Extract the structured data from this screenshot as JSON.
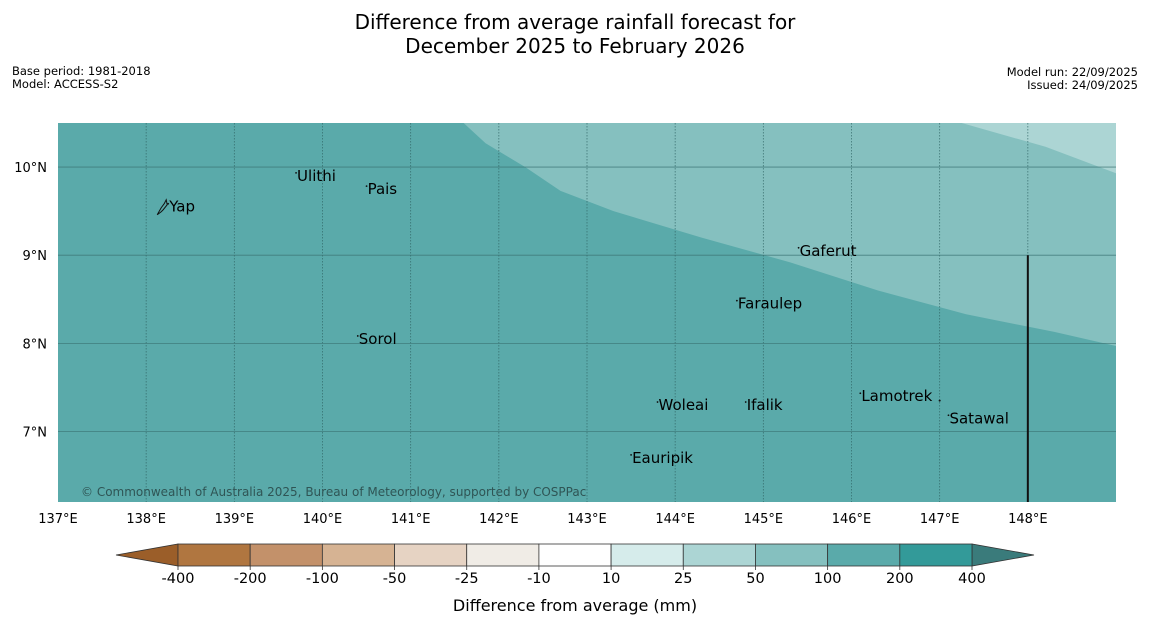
{
  "title": {
    "line1": "Difference from average rainfall forecast for",
    "line2": "December 2025 to February 2026"
  },
  "meta": {
    "base_period": "Base period: 1981-2018",
    "model": "Model: ACCESS-S2",
    "model_run": "Model run: 22/09/2025",
    "issued": "Issued: 24/09/2025"
  },
  "map": {
    "lon_range": [
      137,
      149
    ],
    "lat_range": [
      6.2,
      10.5
    ],
    "lon_ticks": [
      137,
      138,
      139,
      140,
      141,
      142,
      143,
      144,
      145,
      146,
      147,
      148
    ],
    "lon_tick_labels": [
      "137°E",
      "138°E",
      "139°E",
      "140°E",
      "141°E",
      "142°E",
      "143°E",
      "144°E",
      "145°E",
      "146°E",
      "147°E",
      "148°E"
    ],
    "lat_ticks": [
      7,
      8,
      9,
      10
    ],
    "lat_tick_labels": [
      "7°N",
      "8°N",
      "9°N",
      "10°N"
    ],
    "boundary_line": {
      "lon": 148,
      "lat_from": 6.2,
      "lat_to": 9.0
    },
    "region_colors": {
      "band_200": "#5aaaaa",
      "band_100": "#85c0bf",
      "band_50": "#acd5d4"
    },
    "region_100_edge": [
      [
        141.6,
        10.5
      ],
      [
        141.85,
        10.27
      ],
      [
        142.3,
        10.0
      ],
      [
        142.7,
        9.73
      ],
      [
        143.3,
        9.5
      ],
      [
        144.3,
        9.2
      ],
      [
        145.3,
        8.92
      ],
      [
        146.3,
        8.6
      ],
      [
        147.3,
        8.33
      ],
      [
        148.3,
        8.13
      ],
      [
        149,
        7.97
      ],
      [
        149,
        10.5
      ]
    ],
    "region_50_edge": [
      [
        147.25,
        10.5
      ],
      [
        148.2,
        10.23
      ],
      [
        149,
        9.93
      ],
      [
        149,
        10.5
      ]
    ],
    "places": [
      {
        "name": "Ulithi",
        "lon": 139.7,
        "lat": 9.9
      },
      {
        "name": "Pais",
        "lon": 140.5,
        "lat": 9.75
      },
      {
        "name": "Yap",
        "lon": 138.25,
        "lat": 9.55
      },
      {
        "name": "Gaferut",
        "lon": 145.4,
        "lat": 9.05
      },
      {
        "name": "Faraulep",
        "lon": 144.7,
        "lat": 8.45
      },
      {
        "name": "Sorol",
        "lon": 140.4,
        "lat": 8.05
      },
      {
        "name": "Lamotrek",
        "lon": 146.1,
        "lat": 7.4
      },
      {
        "name": "Woleai",
        "lon": 143.8,
        "lat": 7.3
      },
      {
        "name": "Ifalik",
        "lon": 144.8,
        "lat": 7.3
      },
      {
        "name": "Satawal",
        "lon": 147.1,
        "lat": 7.15
      },
      {
        "name": "Eauripik",
        "lon": 143.5,
        "lat": 6.7
      }
    ],
    "copyright": "© Commonwealth of Australia 2025, Bureau of Meteorology, supported by COSPPac"
  },
  "colorbar": {
    "label": "Difference from average (mm)",
    "ticks": [
      "-400",
      "-200",
      "-100",
      "-50",
      "-25",
      "-10",
      "10",
      "25",
      "50",
      "100",
      "200",
      "400"
    ],
    "colors": [
      "#9b5e29",
      "#b07640",
      "#c3916a",
      "#d6b393",
      "#e6d3c3",
      "#f0ece6",
      "#ffffff",
      "#d6eceb",
      "#acd5d4",
      "#85c0bf",
      "#5aaaaa",
      "#339a99",
      "#3a7b7b"
    ]
  }
}
